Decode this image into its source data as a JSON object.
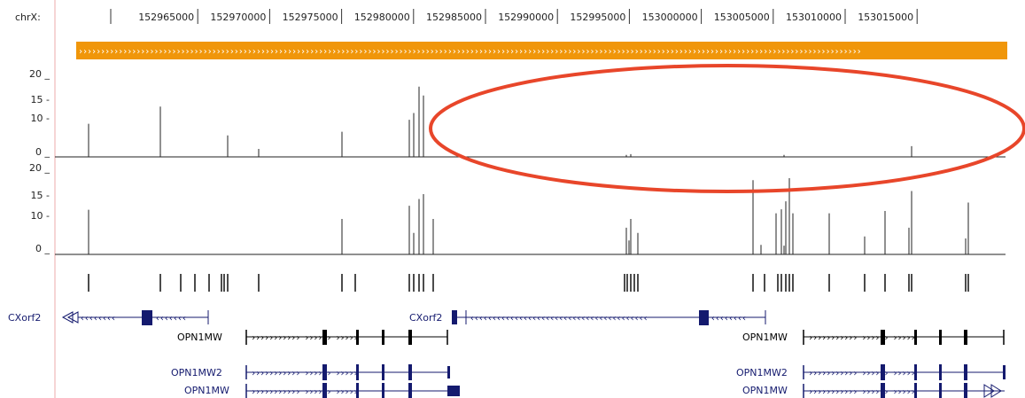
{
  "ruler": {
    "chrom_label": "chrX:",
    "ticks": [
      "152965000",
      "152970000",
      "152975000",
      "152980000",
      "152985000",
      "152990000",
      "152995000",
      "153000000",
      "153005000",
      "153010000",
      "153015000"
    ]
  },
  "track1": {
    "y_ticks": [
      "20 _",
      "15 -",
      "10 -",
      "0 _"
    ],
    "bars": [
      {
        "x": 100,
        "h": 8.3
      },
      {
        "x": 181,
        "h": 12.6
      },
      {
        "x": 257,
        "h": 5.4
      },
      {
        "x": 292,
        "h": 2.0
      },
      {
        "x": 386,
        "h": 6.3
      },
      {
        "x": 462,
        "h": 9.3
      },
      {
        "x": 467,
        "h": 11.0
      },
      {
        "x": 473,
        "h": 17.6
      },
      {
        "x": 478,
        "h": 15.4
      },
      {
        "x": 707,
        "h": 0.5
      },
      {
        "x": 712,
        "h": 0.7
      },
      {
        "x": 885,
        "h": 0.5
      },
      {
        "x": 1029,
        "h": 2.7
      }
    ]
  },
  "track2": {
    "y_ticks": [
      "20 _",
      "15 -",
      "10 -",
      "0 _"
    ],
    "bars": [
      {
        "x": 100,
        "h": 11.2
      },
      {
        "x": 386,
        "h": 8.9
      },
      {
        "x": 462,
        "h": 12.2
      },
      {
        "x": 467,
        "h": 5.4
      },
      {
        "x": 473,
        "h": 13.9
      },
      {
        "x": 478,
        "h": 15.1
      },
      {
        "x": 489,
        "h": 8.9
      },
      {
        "x": 707,
        "h": 6.7
      },
      {
        "x": 710,
        "h": 3.5
      },
      {
        "x": 712,
        "h": 8.9
      },
      {
        "x": 720,
        "h": 5.4
      },
      {
        "x": 850,
        "h": 18.6
      },
      {
        "x": 859,
        "h": 2.4
      },
      {
        "x": 876,
        "h": 10.3
      },
      {
        "x": 882,
        "h": 11.3
      },
      {
        "x": 885,
        "h": 2.2
      },
      {
        "x": 887,
        "h": 13.3
      },
      {
        "x": 891,
        "h": 19.1
      },
      {
        "x": 895,
        "h": 10.3
      },
      {
        "x": 936,
        "h": 10.3
      },
      {
        "x": 976,
        "h": 4.5
      },
      {
        "x": 999,
        "h": 10.9
      },
      {
        "x": 1026,
        "h": 6.7
      },
      {
        "x": 1029,
        "h": 15.9
      },
      {
        "x": 1090,
        "h": 4.0
      },
      {
        "x": 1093,
        "h": 13.0
      }
    ]
  },
  "features": [
    {
      "x": 100
    },
    {
      "x": 181
    },
    {
      "x": 204
    },
    {
      "x": 220
    },
    {
      "x": 236
    },
    {
      "x": 250
    },
    {
      "x": 253
    },
    {
      "x": 257
    },
    {
      "x": 292
    },
    {
      "x": 386
    },
    {
      "x": 401
    },
    {
      "x": 462
    },
    {
      "x": 467
    },
    {
      "x": 473
    },
    {
      "x": 478
    },
    {
      "x": 489
    },
    {
      "x": 705
    },
    {
      "x": 708
    },
    {
      "x": 712
    },
    {
      "x": 716
    },
    {
      "x": 720
    },
    {
      "x": 850
    },
    {
      "x": 863
    },
    {
      "x": 878
    },
    {
      "x": 882
    },
    {
      "x": 887
    },
    {
      "x": 891
    },
    {
      "x": 895
    },
    {
      "x": 936
    },
    {
      "x": 976
    },
    {
      "x": 999
    },
    {
      "x": 1026
    },
    {
      "x": 1029
    },
    {
      "x": 1090
    },
    {
      "x": 1093
    }
  ],
  "genes": {
    "cxorf2_left": "CXorf2",
    "cxorf2_right": "CXorf2",
    "opn1mw_row1_left": "OPN1MW",
    "opn1mw_row1_right": "OPN1MW",
    "opn1mw2_left": "OPN1MW2",
    "opn1mw2_right": "OPN1MW2",
    "opn1mw_row3_left": "OPN1MW",
    "opn1mw_row3_right": "OPN1MW"
  },
  "colors": {
    "chevron_bar": "#f0960a",
    "annotation": "#e8462a",
    "gene_navy": "#141a6e",
    "gene_black": "#000000",
    "axis_pink": "#f3c7c7"
  }
}
